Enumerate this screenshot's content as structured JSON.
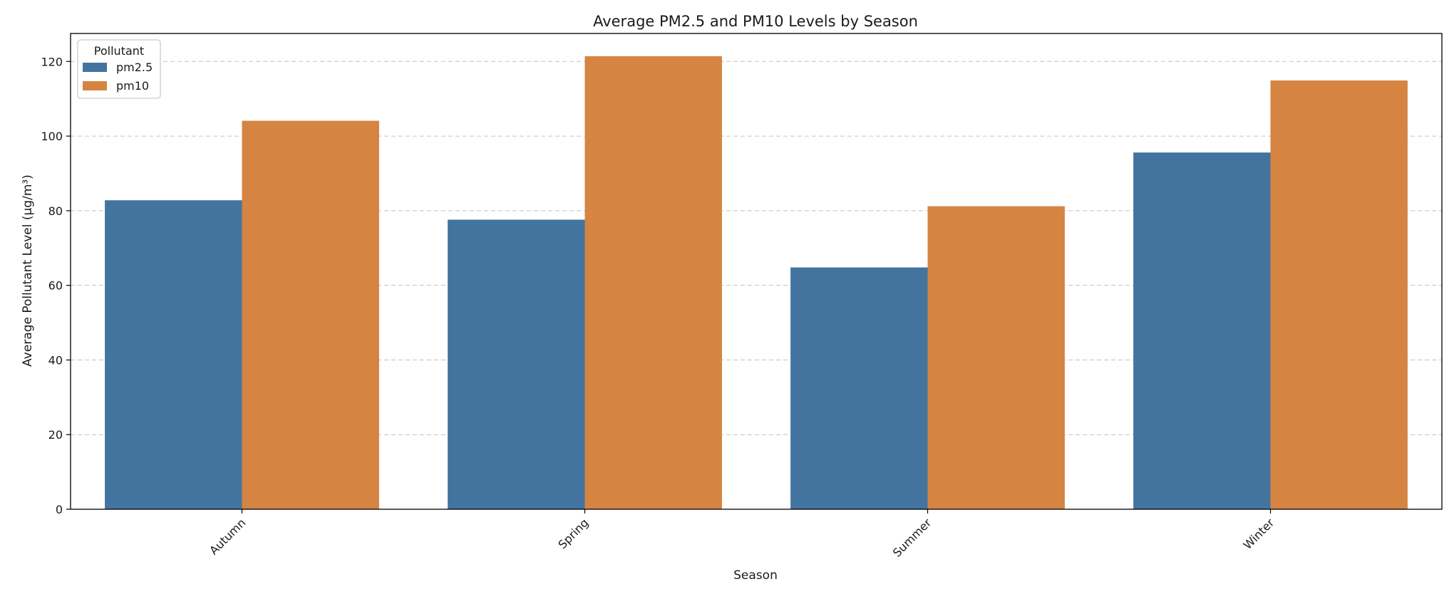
{
  "chart_data": {
    "type": "bar",
    "title": "Average PM2.5 and PM10 Levels by Season",
    "xlabel": "Season",
    "ylabel": "Average Pollutant Level (µg/m³)",
    "categories": [
      "Autumn",
      "Spring",
      "Summer",
      "Winter"
    ],
    "series": [
      {
        "name": "pm2.5",
        "values": [
          82.8,
          77.6,
          64.8,
          95.6
        ],
        "color": "#4374a0"
      },
      {
        "name": "pm10",
        "values": [
          104.1,
          121.4,
          81.2,
          114.9
        ],
        "color": "#d58441"
      }
    ],
    "ylim": [
      0,
      127.5
    ],
    "yticks": [
      0,
      20,
      40,
      60,
      80,
      100,
      120
    ],
    "grid": "y-dashed",
    "legend": {
      "title": "Pollutant",
      "placement": "top-left"
    }
  }
}
